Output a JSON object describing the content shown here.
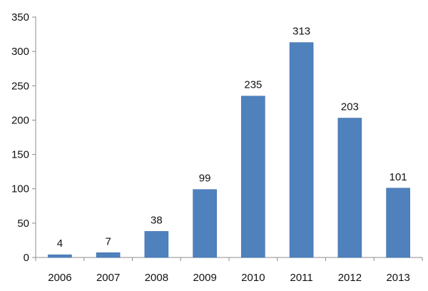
{
  "chart_data": {
    "type": "bar",
    "title": "",
    "xlabel": "",
    "ylabel": "",
    "categories": [
      "2006",
      "2007",
      "2008",
      "2009",
      "2010",
      "2011",
      "2012",
      "2013"
    ],
    "values": [
      4,
      7,
      38,
      99,
      235,
      313,
      203,
      101
    ],
    "data_labels": [
      "4",
      "7",
      "38",
      "99",
      "235",
      "313",
      "203",
      "101"
    ],
    "ylim": [
      0,
      350
    ],
    "yticks": [
      0,
      50,
      100,
      150,
      200,
      250,
      300,
      350
    ],
    "ytick_labels": [
      "0",
      "50",
      "100",
      "150",
      "200",
      "250",
      "300",
      "350"
    ],
    "grid": false,
    "legend": "none",
    "colors": {
      "bar": "#4f81bd",
      "bar_stroke": "#3f6fa8",
      "axis": "#8c8c8c",
      "text": "#111111"
    }
  }
}
